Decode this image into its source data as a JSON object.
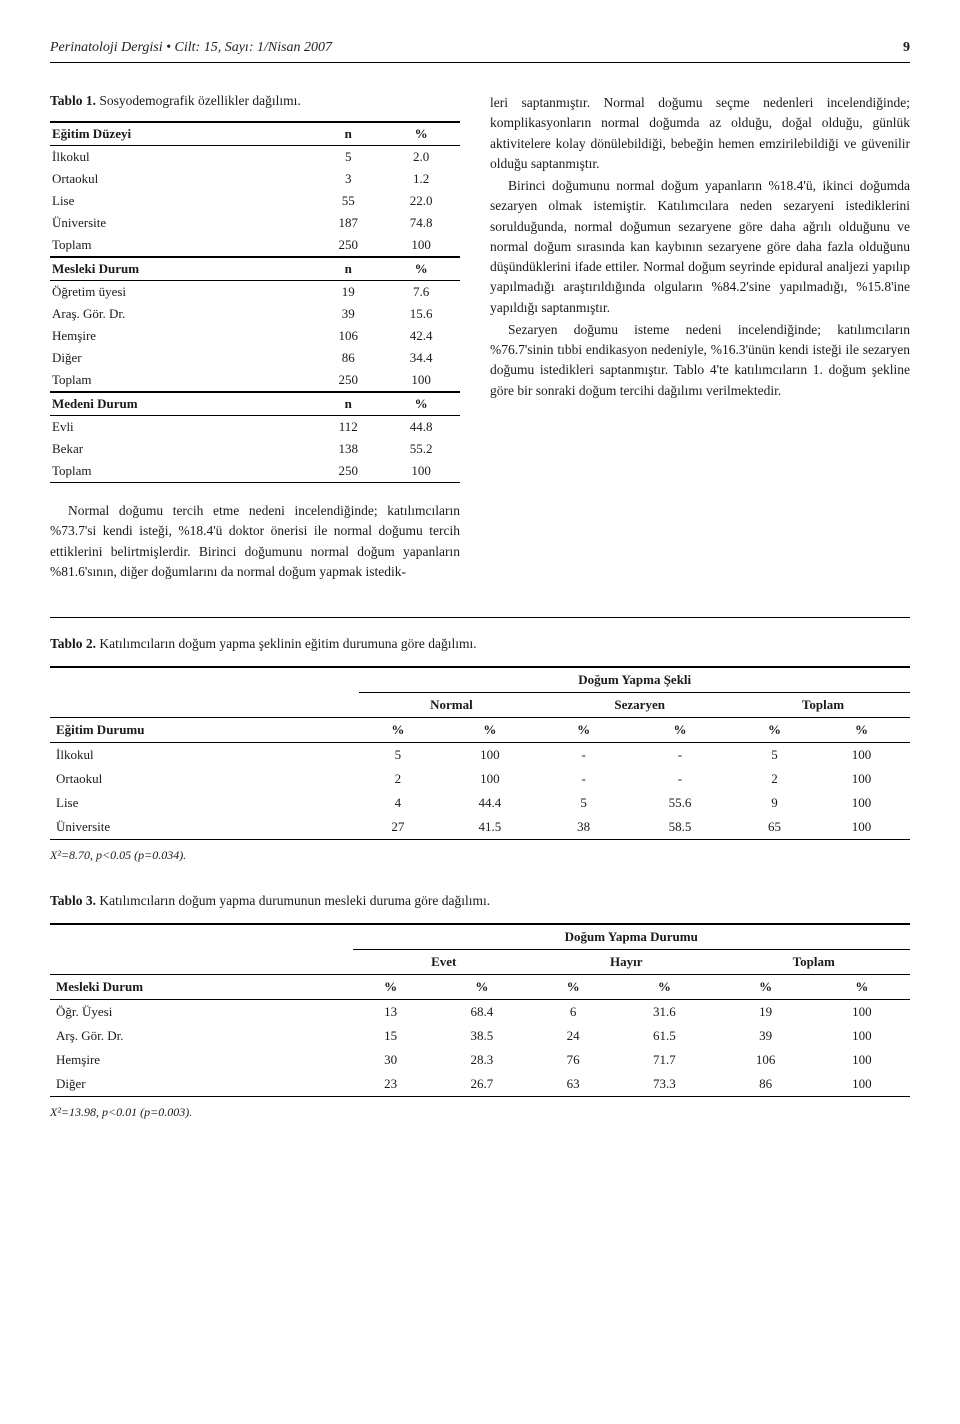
{
  "header": {
    "journal": "Perinatoloji Dergisi • Cilt: 15, Sayı: 1/Nisan 2007",
    "page": "9"
  },
  "table1": {
    "caption_label": "Tablo 1.",
    "caption_text": " Sosyodemografik özellikler dağılımı.",
    "sections": [
      {
        "header": [
          "Eğitim Düzeyi",
          "n",
          "%"
        ],
        "rows": [
          [
            "İlkokul",
            "5",
            "2.0"
          ],
          [
            "Ortaokul",
            "3",
            "1.2"
          ],
          [
            "Lise",
            "55",
            "22.0"
          ],
          [
            "Üniversite",
            "187",
            "74.8"
          ],
          [
            "Toplam",
            "250",
            "100"
          ]
        ]
      },
      {
        "header": [
          "Mesleki Durum",
          "n",
          "%"
        ],
        "rows": [
          [
            "Öğretim üyesi",
            "19",
            "7.6"
          ],
          [
            "Araş. Gör. Dr.",
            "39",
            "15.6"
          ],
          [
            "Hemşire",
            "106",
            "42.4"
          ],
          [
            "Diğer",
            "86",
            "34.4"
          ],
          [
            "Toplam",
            "250",
            "100"
          ]
        ]
      },
      {
        "header": [
          "Medeni Durum",
          "n",
          "%"
        ],
        "rows": [
          [
            "Evli",
            "112",
            "44.8"
          ],
          [
            "Bekar",
            "138",
            "55.2"
          ],
          [
            "Toplam",
            "250",
            "100"
          ]
        ]
      }
    ]
  },
  "left_body": {
    "p1": "Normal doğumu tercih etme nedeni incelendiğinde; katılımcıların %73.7'si kendi isteği, %18.4'ü doktor önerisi ile normal doğumu tercih ettiklerini belirtmişlerdir. Birinci doğumunu normal doğum yapanların %81.6'sının, diğer doğumlarını da normal doğum yapmak istedik-"
  },
  "right_body": {
    "p1": "leri saptanmıştır. Normal doğumu seçme nedenleri incelendiğinde; komplikasyonların normal doğumda az olduğu, doğal olduğu, günlük aktivitelere kolay dönülebildiği, bebeğin hemen emzirilebildiği ve güvenilir olduğu saptanmıştır.",
    "p2": "Birinci doğumunu normal doğum yapanların %18.4'ü, ikinci doğumda sezaryen olmak istemiştir. Katılımcılara neden sezaryeni istediklerini sorulduğunda, normal doğumun sezaryene göre daha ağrılı olduğunu ve normal doğum sırasında kan kaybının sezaryene göre daha fazla olduğunu düşündüklerini ifade ettiler. Normal doğum seyrinde epidural analjezi yapılıp yapılmadığı araştırıldığında olguların %84.2'sine yapılmadığı, %15.8'ine yapıldığı saptanmıştır.",
    "p3": "Sezaryen doğumu isteme nedeni incelendiğinde; katılımcıların %76.7'sinin tıbbi endikasyon nedeniyle, %16.3'ünün kendi isteği ile sezaryen doğumu istedikleri saptanmıştır. Tablo 4'te katılımcıların 1. doğum şekline göre bir sonraki doğum tercihi dağılımı verilmektedir."
  },
  "table2": {
    "caption_label": "Tablo 2.",
    "caption_text": " Katılımcıların doğum yapma şeklinin eğitim durumuna göre dağılımı.",
    "super_header": "Doğum Yapma Şekli",
    "group_headers": [
      "",
      "Normal",
      "Sezaryen",
      "Toplam"
    ],
    "col_headers": [
      "Eğitim Durumu",
      "%",
      "%",
      "%",
      "%",
      "%",
      "%"
    ],
    "rows": [
      [
        "İlkokul",
        "5",
        "100",
        "-",
        "-",
        "5",
        "100"
      ],
      [
        "Ortaokul",
        "2",
        "100",
        "-",
        "-",
        "2",
        "100"
      ],
      [
        "Lise",
        "4",
        "44.4",
        "5",
        "55.6",
        "9",
        "100"
      ],
      [
        "Üniversite",
        "27",
        "41.5",
        "38",
        "58.5",
        "65",
        "100"
      ]
    ],
    "footnote": "X²=8.70, p<0.05 (p=0.034)."
  },
  "table3": {
    "caption_label": "Tablo 3.",
    "caption_text": " Katılımcıların doğum yapma durumunun mesleki duruma göre dağılımı.",
    "super_header": "Doğum Yapma Durumu",
    "group_headers": [
      "",
      "Evet",
      "Hayır",
      "Toplam"
    ],
    "col_headers": [
      "Mesleki Durum",
      "%",
      "%",
      "%",
      "%",
      "%",
      "%"
    ],
    "rows": [
      [
        "Öğr. Üyesi",
        "13",
        "68.4",
        "6",
        "31.6",
        "19",
        "100"
      ],
      [
        "Arş. Gör. Dr.",
        "15",
        "38.5",
        "24",
        "61.5",
        "39",
        "100"
      ],
      [
        "Hemşire",
        "30",
        "28.3",
        "76",
        "71.7",
        "106",
        "100"
      ],
      [
        "Diğer",
        "23",
        "26.7",
        "63",
        "73.3",
        "86",
        "100"
      ]
    ],
    "footnote": "X²=13.98, p<0.01 (p=0.003)."
  }
}
